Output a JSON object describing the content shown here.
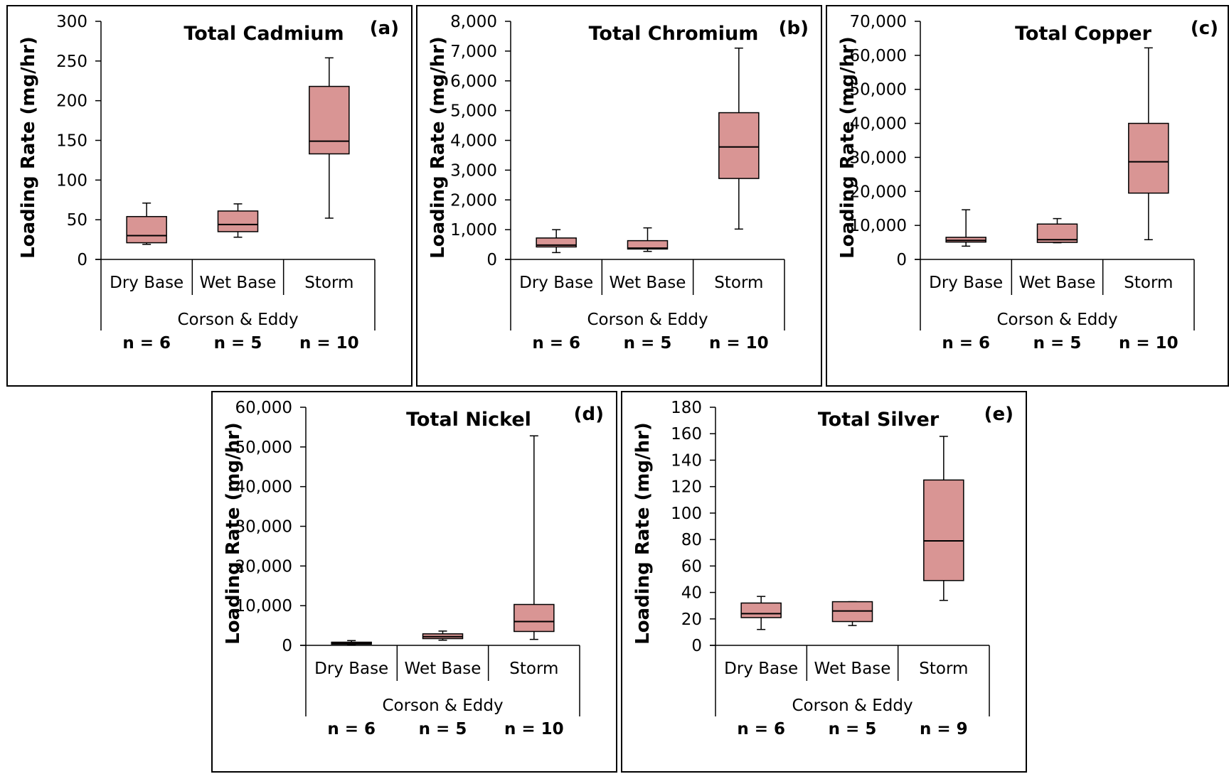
{
  "colors": {
    "box_fill": "#d99594",
    "line": "#000000"
  },
  "chart_data": [
    {
      "type": "box",
      "title": "Total Cadmium",
      "panel_letter": "(a)",
      "ylabel": "Loading Rate (mg/hr)",
      "xlabel": "Corson & Eddy",
      "ylim": [
        0,
        300
      ],
      "yticks": [
        0,
        50,
        100,
        150,
        200,
        250,
        300
      ],
      "ytick_labels": [
        "0",
        "50",
        "100",
        "150",
        "200",
        "250",
        "300"
      ],
      "categories": [
        "Dry Base",
        "Wet Base",
        "Storm"
      ],
      "n_labels": [
        "n = 6",
        "n = 5",
        "n = 10"
      ],
      "boxes": [
        {
          "min": 19,
          "q1": 21,
          "median": 30,
          "q3": 54,
          "max": 71
        },
        {
          "min": 28,
          "q1": 35,
          "median": 44,
          "q3": 61,
          "max": 70
        },
        {
          "min": 52,
          "q1": 133,
          "median": 149,
          "q3": 218,
          "max": 254
        }
      ]
    },
    {
      "type": "box",
      "title": "Total Chromium",
      "panel_letter": "(b)",
      "ylabel": "Loading Rate (mg/hr)",
      "xlabel": "Corson & Eddy",
      "ylim": [
        0,
        8000
      ],
      "yticks": [
        0,
        1000,
        2000,
        3000,
        4000,
        5000,
        6000,
        7000,
        8000
      ],
      "ytick_labels": [
        "0",
        "1,000",
        "2,000",
        "3,000",
        "4,000",
        "5,000",
        "6,000",
        "7,000",
        "8,000"
      ],
      "categories": [
        "Dry Base",
        "Wet Base",
        "Storm"
      ],
      "n_labels": [
        "n = 6",
        "n = 5",
        "n = 10"
      ],
      "boxes": [
        {
          "min": 230,
          "q1": 420,
          "median": 480,
          "q3": 720,
          "max": 1000
        },
        {
          "min": 270,
          "q1": 350,
          "median": 380,
          "q3": 630,
          "max": 1060
        },
        {
          "min": 1020,
          "q1": 2720,
          "median": 3780,
          "q3": 4930,
          "max": 7100
        }
      ]
    },
    {
      "type": "box",
      "title": "Total Copper",
      "panel_letter": "(c)",
      "ylabel": "Loading Rate (mg/hr)",
      "xlabel": "Corson & Eddy",
      "ylim": [
        0,
        70000
      ],
      "yticks": [
        0,
        10000,
        20000,
        30000,
        40000,
        50000,
        60000,
        70000
      ],
      "ytick_labels": [
        "0",
        "10,000",
        "20,000",
        "30,000",
        "40,000",
        "50,000",
        "60,000",
        "70,000"
      ],
      "categories": [
        "Dry Base",
        "Wet Base",
        "Storm"
      ],
      "n_labels": [
        "n = 6",
        "n = 5",
        "n = 10"
      ],
      "boxes": [
        {
          "min": 3900,
          "q1": 5100,
          "median": 5600,
          "q3": 6500,
          "max": 14600
        },
        {
          "min": 4900,
          "q1": 5000,
          "median": 5800,
          "q3": 10400,
          "max": 12000
        },
        {
          "min": 5800,
          "q1": 19500,
          "median": 28700,
          "q3": 40000,
          "max": 62200
        }
      ]
    },
    {
      "type": "box",
      "title": "Total Nickel",
      "panel_letter": "(d)",
      "ylabel": "Loading Rate (mg/hr)",
      "xlabel": "Corson & Eddy",
      "ylim": [
        0,
        60000
      ],
      "yticks": [
        0,
        10000,
        20000,
        30000,
        40000,
        50000,
        60000
      ],
      "ytick_labels": [
        "0",
        "10,000",
        "20,000",
        "30,000",
        "40,000",
        "50,000",
        "60,000"
      ],
      "categories": [
        "Dry Base",
        "Wet Base",
        "Storm"
      ],
      "n_labels": [
        "n = 6",
        "n = 5",
        "n = 10"
      ],
      "boxes": [
        {
          "min": 100,
          "q1": 300,
          "median": 500,
          "q3": 800,
          "max": 1200
        },
        {
          "min": 1300,
          "q1": 1700,
          "median": 2200,
          "q3": 2900,
          "max": 3600
        },
        {
          "min": 1500,
          "q1": 3500,
          "median": 6000,
          "q3": 10300,
          "max": 52800
        }
      ]
    },
    {
      "type": "box",
      "title": "Total Silver",
      "panel_letter": "(e)",
      "ylabel": "Loading Rate (mg/hr)",
      "xlabel": "Corson & Eddy",
      "ylim": [
        0,
        180
      ],
      "yticks": [
        0,
        20,
        40,
        60,
        80,
        100,
        120,
        140,
        160,
        180
      ],
      "ytick_labels": [
        "0",
        "20",
        "40",
        "60",
        "80",
        "100",
        "120",
        "140",
        "160",
        "180"
      ],
      "categories": [
        "Dry Base",
        "Wet Base",
        "Storm"
      ],
      "n_labels": [
        "n = 6",
        "n = 5",
        "n = 9"
      ],
      "boxes": [
        {
          "min": 12,
          "q1": 21,
          "median": 24,
          "q3": 32,
          "max": 37
        },
        {
          "min": 15,
          "q1": 18,
          "median": 26,
          "q3": 33,
          "max": 33
        },
        {
          "min": 34,
          "q1": 49,
          "median": 79,
          "q3": 125,
          "max": 158
        }
      ]
    }
  ]
}
